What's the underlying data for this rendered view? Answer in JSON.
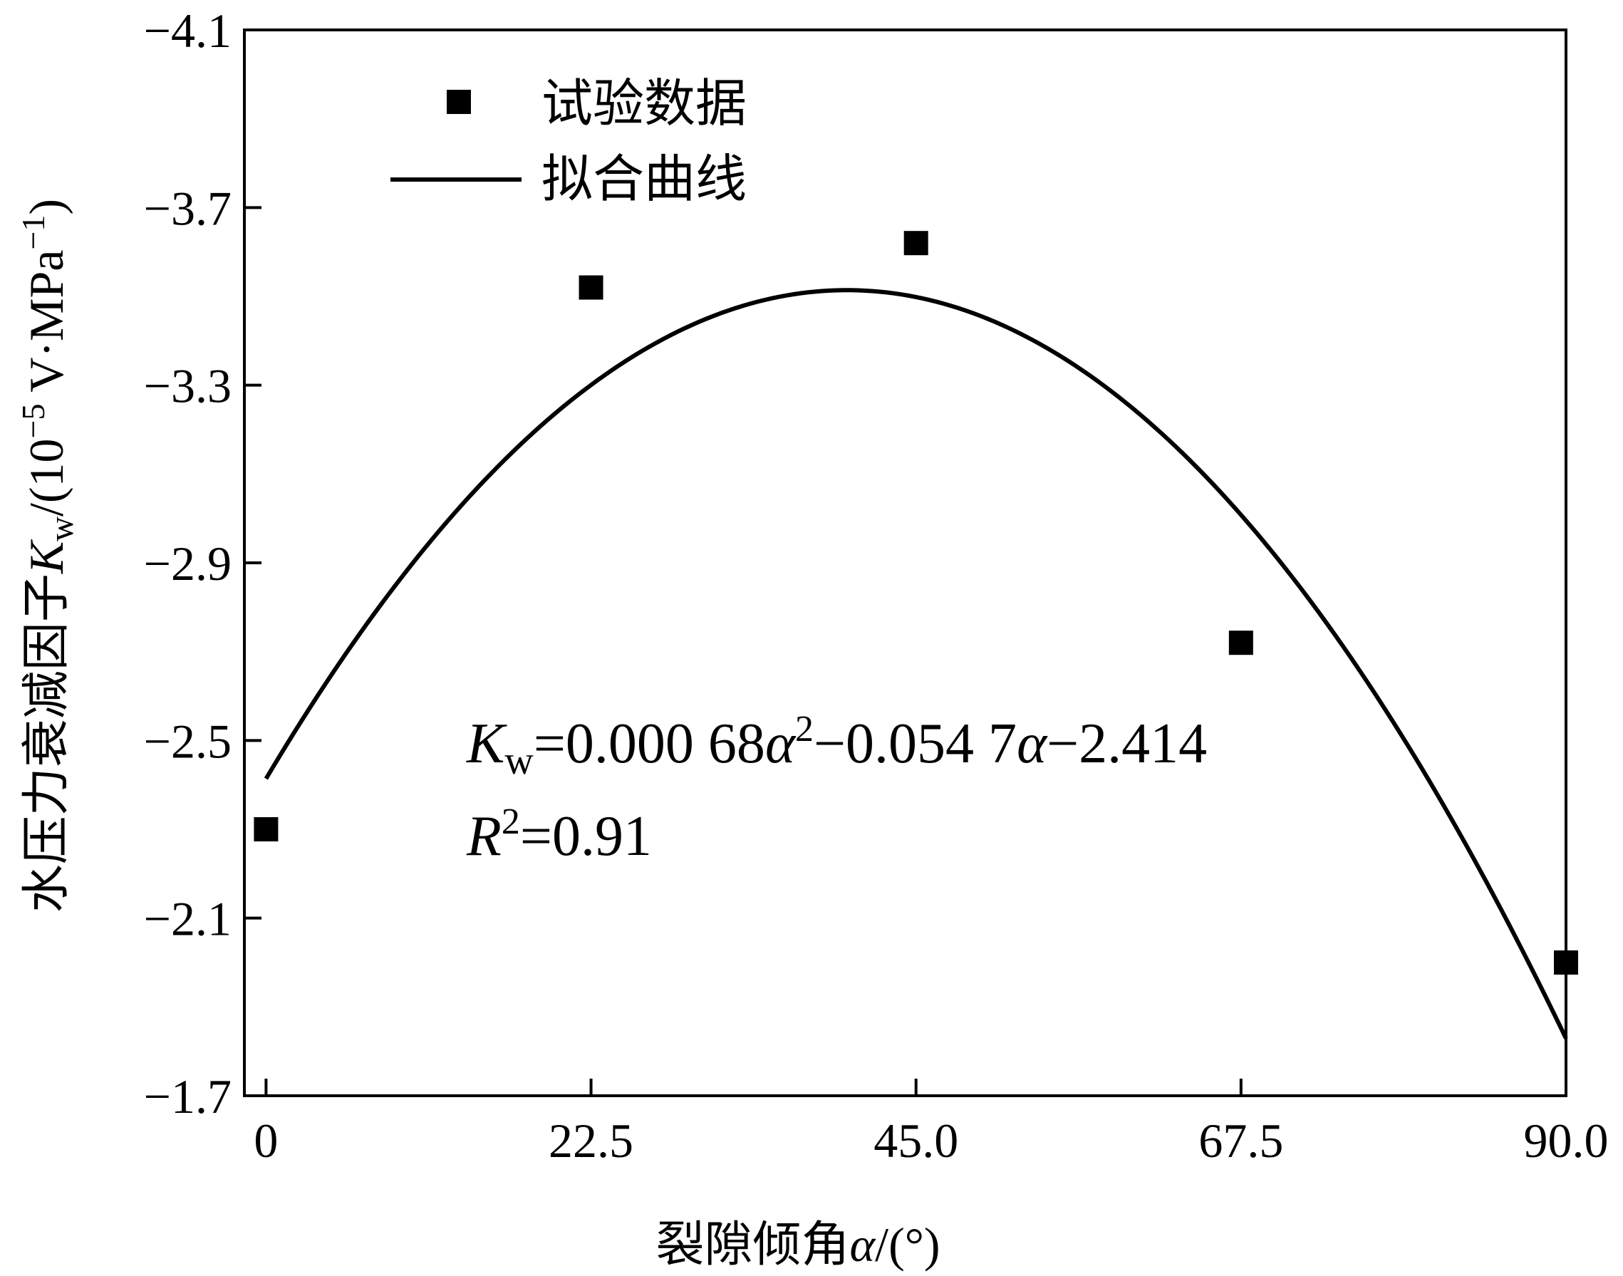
{
  "chart_data": {
    "type": "scatter",
    "xlabel": "裂隙倾角α/(°)",
    "xlabel_parts": {
      "text": "裂隙倾角",
      "symbol": "α",
      "unit": "/(°)"
    },
    "ylabel": "水压力衰减因子Kw/(10−5 V·MPa−1)",
    "ylabel_parts": {
      "text": "水压力衰减因子",
      "symbol": "K",
      "sub": "w",
      "unit_pre": "/(10",
      "exp": "−5",
      "unit_mid": " V·MPa",
      "exp2": "−1",
      "unit_post": ")"
    },
    "xlim": [
      -1.5,
      90
    ],
    "ylim": [
      -1.7,
      -4.1
    ],
    "y_reversed": true,
    "x_ticks": [
      {
        "value": 0,
        "label": "0"
      },
      {
        "value": 22.5,
        "label": "22.5"
      },
      {
        "value": 45,
        "label": "45.0"
      },
      {
        "value": 67.5,
        "label": "67.5"
      },
      {
        "value": 90,
        "label": "90.0"
      }
    ],
    "y_ticks": [
      {
        "value": -4.1,
        "label": "−4.1"
      },
      {
        "value": -3.7,
        "label": "−3.7"
      },
      {
        "value": -3.3,
        "label": "−3.3"
      },
      {
        "value": -2.9,
        "label": "−2.9"
      },
      {
        "value": -2.5,
        "label": "−2.5"
      },
      {
        "value": -2.1,
        "label": "−2.1"
      },
      {
        "value": -1.7,
        "label": "−1.7"
      }
    ],
    "grid": false,
    "legend_position": "top-left",
    "series": [
      {
        "name": "试验数据",
        "kind": "scatter",
        "marker": "square",
        "color": "#000000",
        "points": [
          {
            "x": 0,
            "y": -2.3
          },
          {
            "x": 22.5,
            "y": -3.52
          },
          {
            "x": 45,
            "y": -3.62
          },
          {
            "x": 67.5,
            "y": -2.72
          },
          {
            "x": 90,
            "y": -2.0
          }
        ]
      },
      {
        "name": "拟合曲线",
        "kind": "line",
        "color": "#000000",
        "fit": {
          "a2": 0.00068,
          "a1": -0.0547,
          "a0": -2.414,
          "x_range": [
            0,
            90
          ]
        }
      }
    ],
    "annotations": {
      "equation": {
        "lhs": "K",
        "lhs_sub": "w",
        "eq1": "=0.000 68",
        "var1": "α",
        "exp1": "2",
        "mid": "−0.054 7",
        "var2": "α",
        "tail": "−2.414"
      },
      "r2": {
        "sym": "R",
        "exp": "2",
        "val": "=0.91"
      }
    }
  }
}
